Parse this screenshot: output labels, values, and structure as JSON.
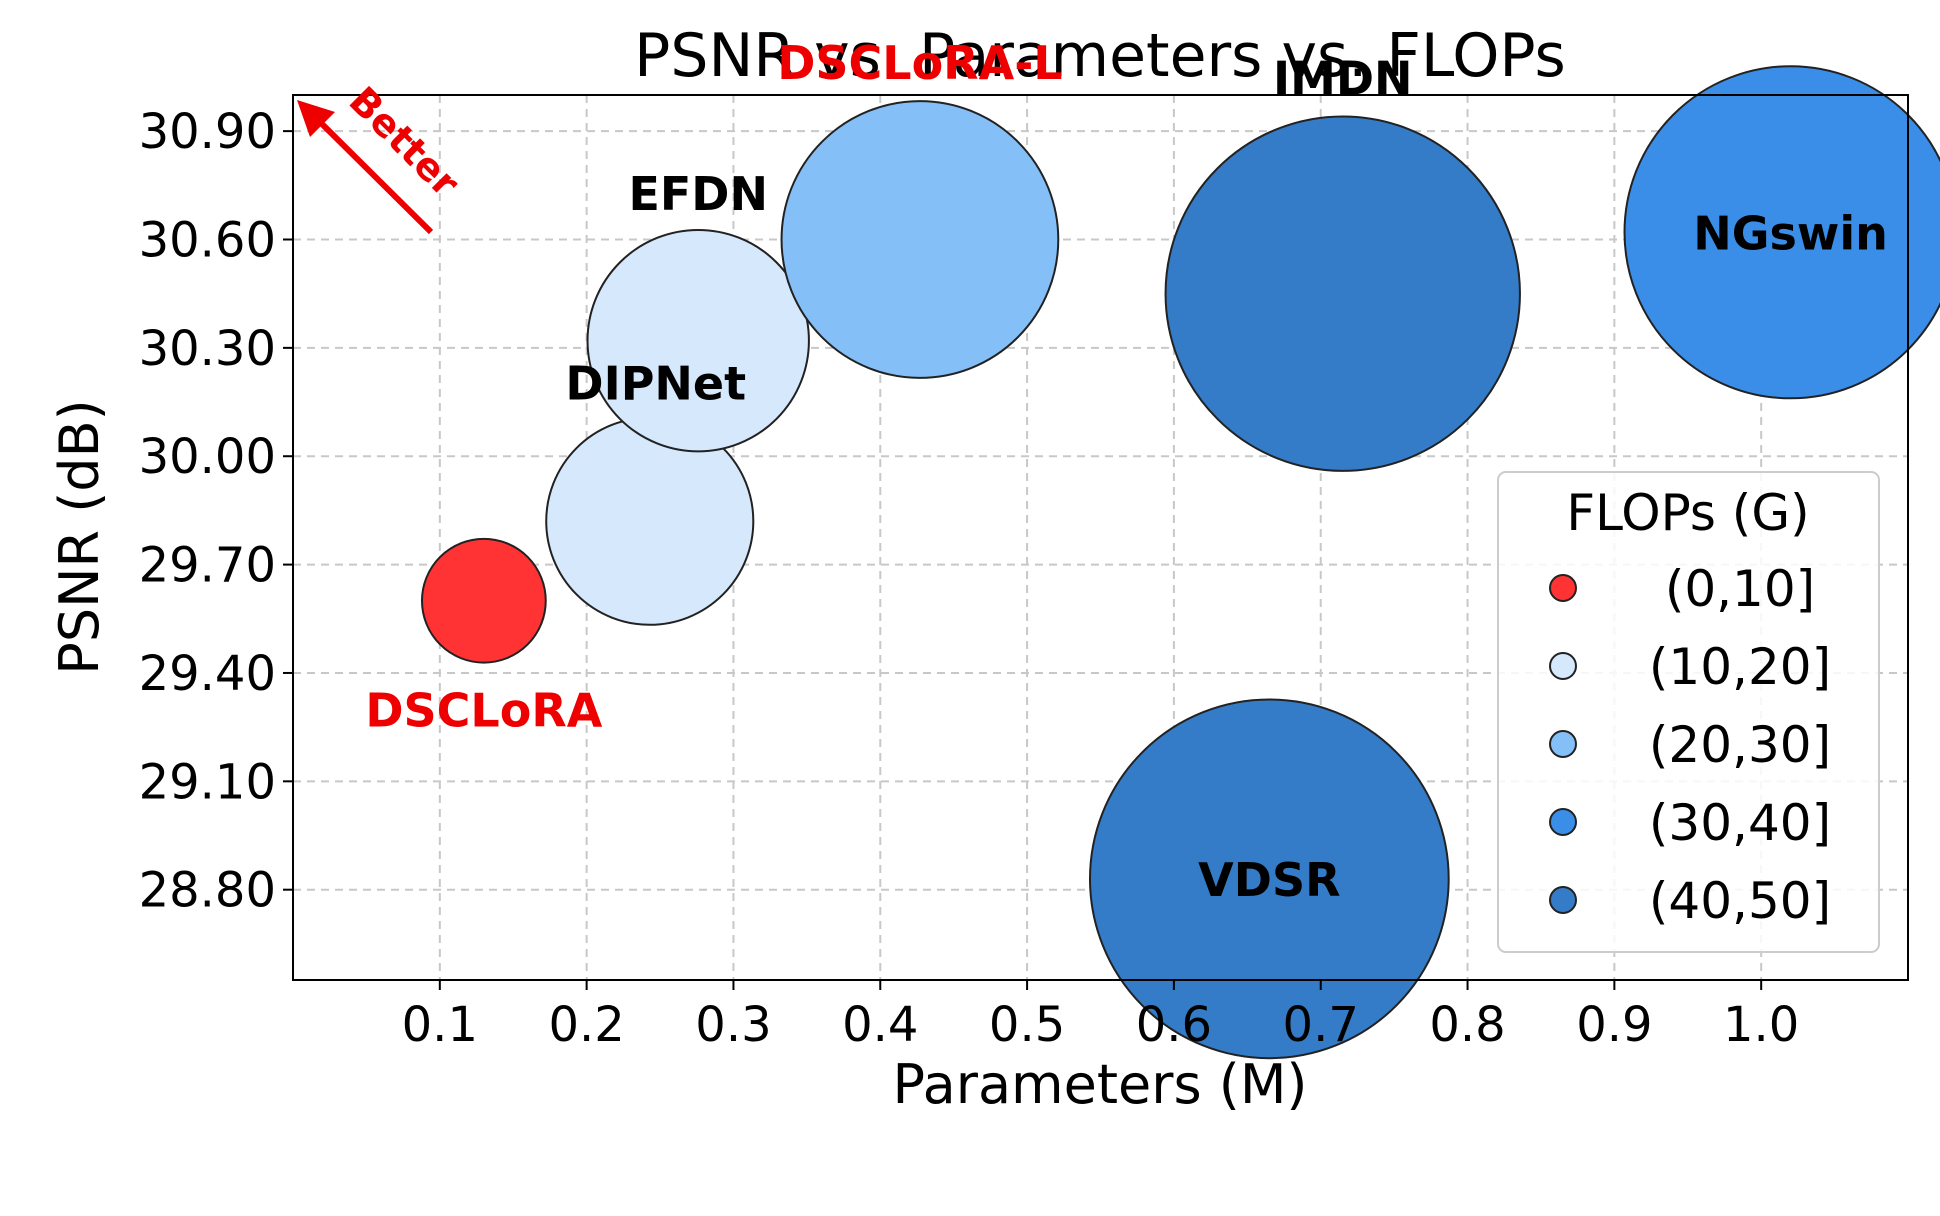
{
  "chart_data": {
    "type": "scatter",
    "title": "PSNR vs. Parameters vs. FLOPs",
    "xlabel": "Parameters (M)",
    "ylabel": "PSNR (dB)",
    "xlim": [
      0.0,
      1.1
    ],
    "ylim": [
      28.55,
      31.0
    ],
    "xticks": [
      "0.1",
      "0.2",
      "0.3",
      "0.4",
      "0.5",
      "0.6",
      "0.7",
      "0.8",
      "0.9",
      "1.0"
    ],
    "yticks": [
      "28.80",
      "29.10",
      "29.40",
      "29.70",
      "30.00",
      "30.30",
      "30.60",
      "30.90"
    ],
    "grid": true,
    "annotation": {
      "text": "Better",
      "color": "#ee0000"
    },
    "legend": {
      "title": "FLOPs (G)",
      "placement": "lower-right",
      "entries": [
        {
          "label": "(0,10]",
          "color": "#ff3333"
        },
        {
          "label": "(10,20]",
          "color": "#d6e8fc"
        },
        {
          "label": "(20,30]",
          "color": "#85bff8"
        },
        {
          "label": "(30,40]",
          "color": "#3a8ee8"
        },
        {
          "label": "(40,50]",
          "color": "#347cc7"
        }
      ]
    },
    "points": [
      {
        "name": "DSCLoRA",
        "x": 0.13,
        "y": 29.6,
        "flops": 5,
        "color": "#ff3333",
        "label_color": "#ee0000"
      },
      {
        "name": "DIPNet",
        "x": 0.243,
        "y": 29.82,
        "flops": 14,
        "color": "#d6e8fc",
        "label_color": "#000000"
      },
      {
        "name": "EFDN",
        "x": 0.276,
        "y": 30.32,
        "flops": 16,
        "color": "#d6e8fc",
        "label_color": "#000000"
      },
      {
        "name": "DSCLoRA-L",
        "x": 0.427,
        "y": 30.6,
        "flops": 25,
        "color": "#85bff8",
        "label_color": "#ee0000"
      },
      {
        "name": "IMDN",
        "x": 0.715,
        "y": 30.45,
        "flops": 41,
        "color": "#347cc7",
        "label_color": "#000000"
      },
      {
        "name": "VDSR",
        "x": 0.665,
        "y": 28.83,
        "flops": 42,
        "color": "#347cc7",
        "label_color": "#000000"
      },
      {
        "name": "NGswin",
        "x": 1.02,
        "y": 30.62,
        "flops": 36,
        "color": "#3a8ee8",
        "label_color": "#000000"
      }
    ]
  }
}
